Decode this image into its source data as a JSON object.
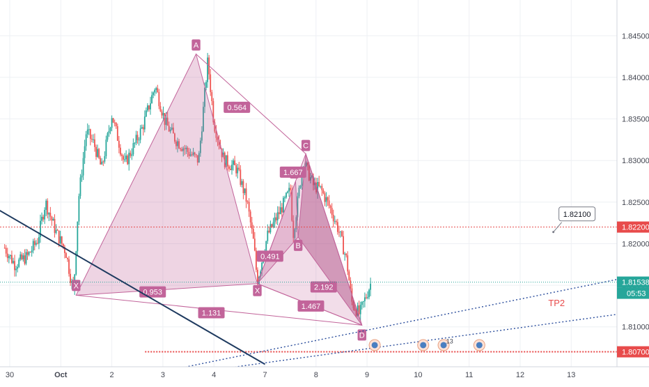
{
  "chart_data": {
    "type": "candlestick",
    "price_axis": {
      "range": [
        1.8052,
        1.8493
      ],
      "ticks": [
        "1.84500",
        "1.84000",
        "1.83500",
        "1.83000",
        "1.82500",
        "1.82000",
        "1.81500",
        "1.81000"
      ]
    },
    "time_axis": {
      "ticks": [
        {
          "label": "30",
          "x": 0.0
        },
        {
          "label": "Oct",
          "x": 1.0
        },
        {
          "label": "2",
          "x": 2.0
        },
        {
          "label": "3",
          "x": 3.0
        },
        {
          "label": "4",
          "x": 4.0
        },
        {
          "label": "7",
          "x": 5.0
        },
        {
          "label": "8",
          "x": 6.0
        },
        {
          "label": "9",
          "x": 7.0
        },
        {
          "label": "10",
          "x": 8.0
        },
        {
          "label": "11",
          "x": 9.0
        },
        {
          "label": "12",
          "x": 10.0
        },
        {
          "label": "13",
          "x": 11.0
        }
      ]
    },
    "close_path": [
      {
        "x": -0.1,
        "y": 1.8195
      },
      {
        "x": 0.1,
        "y": 1.8175
      },
      {
        "x": 0.35,
        "y": 1.8185
      },
      {
        "x": 0.55,
        "y": 1.8205
      },
      {
        "x": 0.7,
        "y": 1.825
      },
      {
        "x": 0.9,
        "y": 1.8215
      },
      {
        "x": 1.1,
        "y": 1.819
      },
      {
        "x": 1.25,
        "y": 1.814
      },
      {
        "x": 1.35,
        "y": 1.8255
      },
      {
        "x": 1.5,
        "y": 1.8335
      },
      {
        "x": 1.65,
        "y": 1.832
      },
      {
        "x": 1.8,
        "y": 1.829
      },
      {
        "x": 2.0,
        "y": 1.8355
      },
      {
        "x": 2.25,
        "y": 1.8295
      },
      {
        "x": 2.45,
        "y": 1.832
      },
      {
        "x": 2.6,
        "y": 1.834
      },
      {
        "x": 2.85,
        "y": 1.839
      },
      {
        "x": 3.05,
        "y": 1.8345
      },
      {
        "x": 3.25,
        "y": 1.8325
      },
      {
        "x": 3.5,
        "y": 1.831
      },
      {
        "x": 3.7,
        "y": 1.83
      },
      {
        "x": 3.88,
        "y": 1.842
      },
      {
        "x": 4.0,
        "y": 1.8345
      },
      {
        "x": 4.2,
        "y": 1.83
      },
      {
        "x": 4.45,
        "y": 1.829
      },
      {
        "x": 4.65,
        "y": 1.825
      },
      {
        "x": 4.78,
        "y": 1.82
      },
      {
        "x": 4.85,
        "y": 1.8155
      },
      {
        "x": 5.05,
        "y": 1.821
      },
      {
        "x": 5.3,
        "y": 1.824
      },
      {
        "x": 5.5,
        "y": 1.8265
      },
      {
        "x": 5.55,
        "y": 1.821
      },
      {
        "x": 5.75,
        "y": 1.83
      },
      {
        "x": 5.95,
        "y": 1.827
      },
      {
        "x": 6.1,
        "y": 1.8265
      },
      {
        "x": 6.3,
        "y": 1.824
      },
      {
        "x": 6.45,
        "y": 1.8215
      },
      {
        "x": 6.6,
        "y": 1.818
      },
      {
        "x": 6.7,
        "y": 1.813
      },
      {
        "x": 6.85,
        "y": 1.8115
      },
      {
        "x": 7.0,
        "y": 1.814
      },
      {
        "x": 7.08,
        "y": 1.81538
      }
    ],
    "harmonic_pattern": {
      "points": [
        {
          "label": "X",
          "x": 1.3,
          "y": 1.8138
        },
        {
          "label": "A",
          "x": 3.65,
          "y": 1.8428
        },
        {
          "label": "X",
          "x": 4.85,
          "y": 1.8152
        },
        {
          "label": "C",
          "x": 5.8,
          "y": 1.8308
        },
        {
          "label": "A",
          "x": 5.6,
          "y": 1.8275
        },
        {
          "label": "B",
          "x": 5.65,
          "y": 1.8208
        },
        {
          "label": "D",
          "x": 6.9,
          "y": 1.8102
        }
      ],
      "ratios": [
        {
          "label": "0.564",
          "x": 4.45,
          "y": 1.8364
        },
        {
          "label": "0.953",
          "x": 2.8,
          "y": 1.8142
        },
        {
          "label": "1.131",
          "x": 3.95,
          "y": 1.8117
        },
        {
          "label": "1.667",
          "x": 5.55,
          "y": 1.8286
        },
        {
          "label": "0.491",
          "x": 5.1,
          "y": 1.8185
        },
        {
          "label": "2.192",
          "x": 6.15,
          "y": 1.8148
        },
        {
          "label": "1.467",
          "x": 5.9,
          "y": 1.8125
        }
      ]
    },
    "horizontal_lines": [
      {
        "price": 1.822,
        "label": "1.82200",
        "color": "#e84b4b"
      },
      {
        "price": 1.807,
        "label": "1.80700",
        "color": "#e84b4b"
      },
      {
        "price": 1.81538,
        "label": "1.81538",
        "color": "#26a69a"
      }
    ],
    "countdown": "05:53",
    "callout": {
      "label": "1.82100"
    },
    "tp2_label": "TP2",
    "event_count": "13",
    "colors": {
      "up": "#26a69a",
      "down": "#ef5350",
      "pattern": "#c2649a",
      "trendline": "#1e3a5f",
      "dotted": "#2a4d9c"
    }
  }
}
